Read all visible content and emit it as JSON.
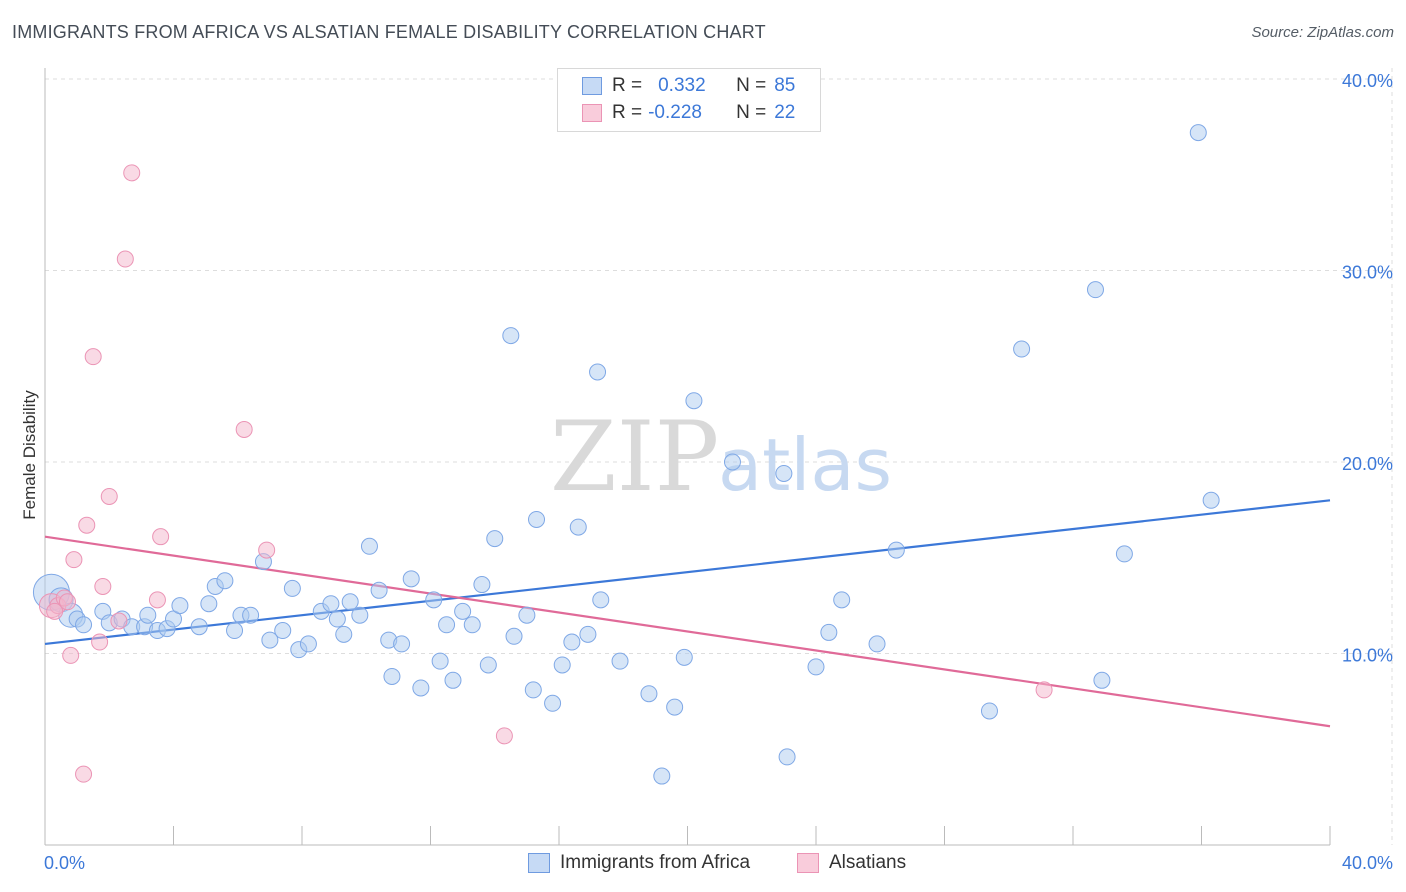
{
  "title": "IMMIGRANTS FROM AFRICA VS ALSATIAN FEMALE DISABILITY CORRELATION CHART",
  "source": "Source: ZipAtlas.com",
  "watermark": {
    "part1": "ZIP",
    "part2": "atlas"
  },
  "legend": {
    "rows": [
      {
        "r_label": "R =",
        "r_value": "0.332",
        "n_label": "N =",
        "n_value": "85"
      },
      {
        "r_label": "R =",
        "r_value": "-0.228",
        "n_label": "N =",
        "n_value": "22"
      }
    ]
  },
  "bottom_legend": {
    "series1": "Immigrants from Africa",
    "series2": "Alsatians"
  },
  "colors": {
    "blue": "#3c78d8",
    "blue_fill": "#aecbf0",
    "pink": "#e06a98",
    "pink_fill": "#f4b6cb",
    "grid": "#dddddd"
  },
  "chart_data": {
    "type": "scatter",
    "title": "IMMIGRANTS FROM AFRICA VS ALSATIAN FEMALE DISABILITY CORRELATION CHART",
    "xlabel": "",
    "ylabel": "Female Disability",
    "xlim": [
      0,
      40
    ],
    "ylim": [
      0,
      40
    ],
    "x_tick_labels": [
      "0.0%",
      "40.0%"
    ],
    "y_tick_labels": [
      "10.0%",
      "20.0%",
      "30.0%",
      "40.0%"
    ],
    "y_ticks": [
      10,
      20,
      30,
      40
    ],
    "series": [
      {
        "name": "Immigrants from Africa",
        "color": "#3c78d8",
        "trend": {
          "x": [
            0,
            40
          ],
          "y": [
            10.5,
            18.0
          ]
        },
        "points": [
          {
            "x": 0.2,
            "y": 13.2,
            "s": 3
          },
          {
            "x": 0.5,
            "y": 12.8,
            "s": 2
          },
          {
            "x": 0.8,
            "y": 12.0,
            "s": 2
          },
          {
            "x": 1.0,
            "y": 11.8,
            "s": 1
          },
          {
            "x": 1.2,
            "y": 11.5,
            "s": 1
          },
          {
            "x": 1.8,
            "y": 12.2,
            "s": 1
          },
          {
            "x": 2.0,
            "y": 11.6,
            "s": 1
          },
          {
            "x": 2.4,
            "y": 11.8,
            "s": 1
          },
          {
            "x": 2.7,
            "y": 11.4,
            "s": 1
          },
          {
            "x": 3.1,
            "y": 11.4,
            "s": 1
          },
          {
            "x": 3.2,
            "y": 12.0,
            "s": 1
          },
          {
            "x": 3.5,
            "y": 11.2,
            "s": 1
          },
          {
            "x": 3.8,
            "y": 11.3,
            "s": 1
          },
          {
            "x": 4.0,
            "y": 11.8,
            "s": 1
          },
          {
            "x": 4.2,
            "y": 12.5,
            "s": 1
          },
          {
            "x": 4.8,
            "y": 11.4,
            "s": 1
          },
          {
            "x": 5.1,
            "y": 12.6,
            "s": 1
          },
          {
            "x": 5.3,
            "y": 13.5,
            "s": 1
          },
          {
            "x": 5.6,
            "y": 13.8,
            "s": 1
          },
          {
            "x": 5.9,
            "y": 11.2,
            "s": 1
          },
          {
            "x": 6.1,
            "y": 12.0,
            "s": 1
          },
          {
            "x": 6.4,
            "y": 12.0,
            "s": 1
          },
          {
            "x": 6.8,
            "y": 14.8,
            "s": 1
          },
          {
            "x": 7.0,
            "y": 10.7,
            "s": 1
          },
          {
            "x": 7.4,
            "y": 11.2,
            "s": 1
          },
          {
            "x": 7.7,
            "y": 13.4,
            "s": 1
          },
          {
            "x": 7.9,
            "y": 10.2,
            "s": 1
          },
          {
            "x": 8.2,
            "y": 10.5,
            "s": 1
          },
          {
            "x": 8.6,
            "y": 12.2,
            "s": 1
          },
          {
            "x": 8.9,
            "y": 12.6,
            "s": 1
          },
          {
            "x": 9.1,
            "y": 11.8,
            "s": 1
          },
          {
            "x": 9.3,
            "y": 11.0,
            "s": 1
          },
          {
            "x": 9.5,
            "y": 12.7,
            "s": 1
          },
          {
            "x": 9.8,
            "y": 12.0,
            "s": 1
          },
          {
            "x": 10.1,
            "y": 15.6,
            "s": 1
          },
          {
            "x": 10.4,
            "y": 13.3,
            "s": 1
          },
          {
            "x": 10.7,
            "y": 10.7,
            "s": 1
          },
          {
            "x": 10.8,
            "y": 8.8,
            "s": 1
          },
          {
            "x": 11.1,
            "y": 10.5,
            "s": 1
          },
          {
            "x": 11.4,
            "y": 13.9,
            "s": 1
          },
          {
            "x": 11.7,
            "y": 8.2,
            "s": 1
          },
          {
            "x": 12.1,
            "y": 12.8,
            "s": 1
          },
          {
            "x": 12.3,
            "y": 9.6,
            "s": 1
          },
          {
            "x": 12.5,
            "y": 11.5,
            "s": 1
          },
          {
            "x": 12.7,
            "y": 8.6,
            "s": 1
          },
          {
            "x": 13.0,
            "y": 12.2,
            "s": 1
          },
          {
            "x": 13.3,
            "y": 11.5,
            "s": 1
          },
          {
            "x": 13.6,
            "y": 13.6,
            "s": 1
          },
          {
            "x": 13.8,
            "y": 9.4,
            "s": 1
          },
          {
            "x": 14.0,
            "y": 16.0,
            "s": 1
          },
          {
            "x": 14.5,
            "y": 26.6,
            "s": 1
          },
          {
            "x": 14.6,
            "y": 10.9,
            "s": 1
          },
          {
            "x": 15.0,
            "y": 12.0,
            "s": 1
          },
          {
            "x": 15.2,
            "y": 8.1,
            "s": 1
          },
          {
            "x": 15.3,
            "y": 17.0,
            "s": 1
          },
          {
            "x": 15.8,
            "y": 7.4,
            "s": 1
          },
          {
            "x": 16.1,
            "y": 9.4,
            "s": 1
          },
          {
            "x": 16.4,
            "y": 10.6,
            "s": 1
          },
          {
            "x": 16.6,
            "y": 16.6,
            "s": 1
          },
          {
            "x": 16.9,
            "y": 11.0,
            "s": 1
          },
          {
            "x": 17.3,
            "y": 12.8,
            "s": 1
          },
          {
            "x": 17.2,
            "y": 24.7,
            "s": 1
          },
          {
            "x": 17.9,
            "y": 9.6,
            "s": 1
          },
          {
            "x": 18.8,
            "y": 7.9,
            "s": 1
          },
          {
            "x": 19.2,
            "y": 3.6,
            "s": 1
          },
          {
            "x": 19.6,
            "y": 7.2,
            "s": 1
          },
          {
            "x": 19.9,
            "y": 9.8,
            "s": 1
          },
          {
            "x": 20.2,
            "y": 23.2,
            "s": 1
          },
          {
            "x": 21.4,
            "y": 20.0,
            "s": 1
          },
          {
            "x": 23.0,
            "y": 19.4,
            "s": 1
          },
          {
            "x": 23.1,
            "y": 4.6,
            "s": 1
          },
          {
            "x": 24.0,
            "y": 9.3,
            "s": 1
          },
          {
            "x": 24.4,
            "y": 11.1,
            "s": 1
          },
          {
            "x": 24.8,
            "y": 12.8,
            "s": 1
          },
          {
            "x": 25.9,
            "y": 10.5,
            "s": 1
          },
          {
            "x": 26.5,
            "y": 15.4,
            "s": 1
          },
          {
            "x": 29.4,
            "y": 7.0,
            "s": 1
          },
          {
            "x": 30.4,
            "y": 25.9,
            "s": 1
          },
          {
            "x": 32.7,
            "y": 29.0,
            "s": 1
          },
          {
            "x": 32.9,
            "y": 8.6,
            "s": 1
          },
          {
            "x": 33.6,
            "y": 15.2,
            "s": 1
          },
          {
            "x": 35.9,
            "y": 37.2,
            "s": 1
          },
          {
            "x": 36.3,
            "y": 18.0,
            "s": 1
          }
        ]
      },
      {
        "name": "Alsatians",
        "color": "#e06a98",
        "trend": {
          "x": [
            0,
            40
          ],
          "y": [
            16.1,
            6.2
          ]
        },
        "points": [
          {
            "x": 0.2,
            "y": 12.5,
            "s": 2
          },
          {
            "x": 0.4,
            "y": 12.5,
            "s": 1
          },
          {
            "x": 0.6,
            "y": 12.9,
            "s": 1
          },
          {
            "x": 0.8,
            "y": 9.9,
            "s": 1
          },
          {
            "x": 0.9,
            "y": 14.9,
            "s": 1
          },
          {
            "x": 1.2,
            "y": 3.7,
            "s": 1
          },
          {
            "x": 1.3,
            "y": 16.7,
            "s": 1
          },
          {
            "x": 1.5,
            "y": 25.5,
            "s": 1
          },
          {
            "x": 1.7,
            "y": 10.6,
            "s": 1
          },
          {
            "x": 1.8,
            "y": 13.5,
            "s": 1
          },
          {
            "x": 2.0,
            "y": 18.2,
            "s": 1
          },
          {
            "x": 2.3,
            "y": 11.7,
            "s": 1
          },
          {
            "x": 2.5,
            "y": 30.6,
            "s": 1
          },
          {
            "x": 2.7,
            "y": 35.1,
            "s": 1
          },
          {
            "x": 3.5,
            "y": 12.8,
            "s": 1
          },
          {
            "x": 3.6,
            "y": 16.1,
            "s": 1
          },
          {
            "x": 6.2,
            "y": 21.7,
            "s": 1
          },
          {
            "x": 6.9,
            "y": 15.4,
            "s": 1
          },
          {
            "x": 14.3,
            "y": 5.7,
            "s": 1
          },
          {
            "x": 31.1,
            "y": 8.1,
            "s": 1
          },
          {
            "x": 0.7,
            "y": 12.7,
            "s": 1
          },
          {
            "x": 0.3,
            "y": 12.2,
            "s": 1
          }
        ]
      }
    ]
  }
}
